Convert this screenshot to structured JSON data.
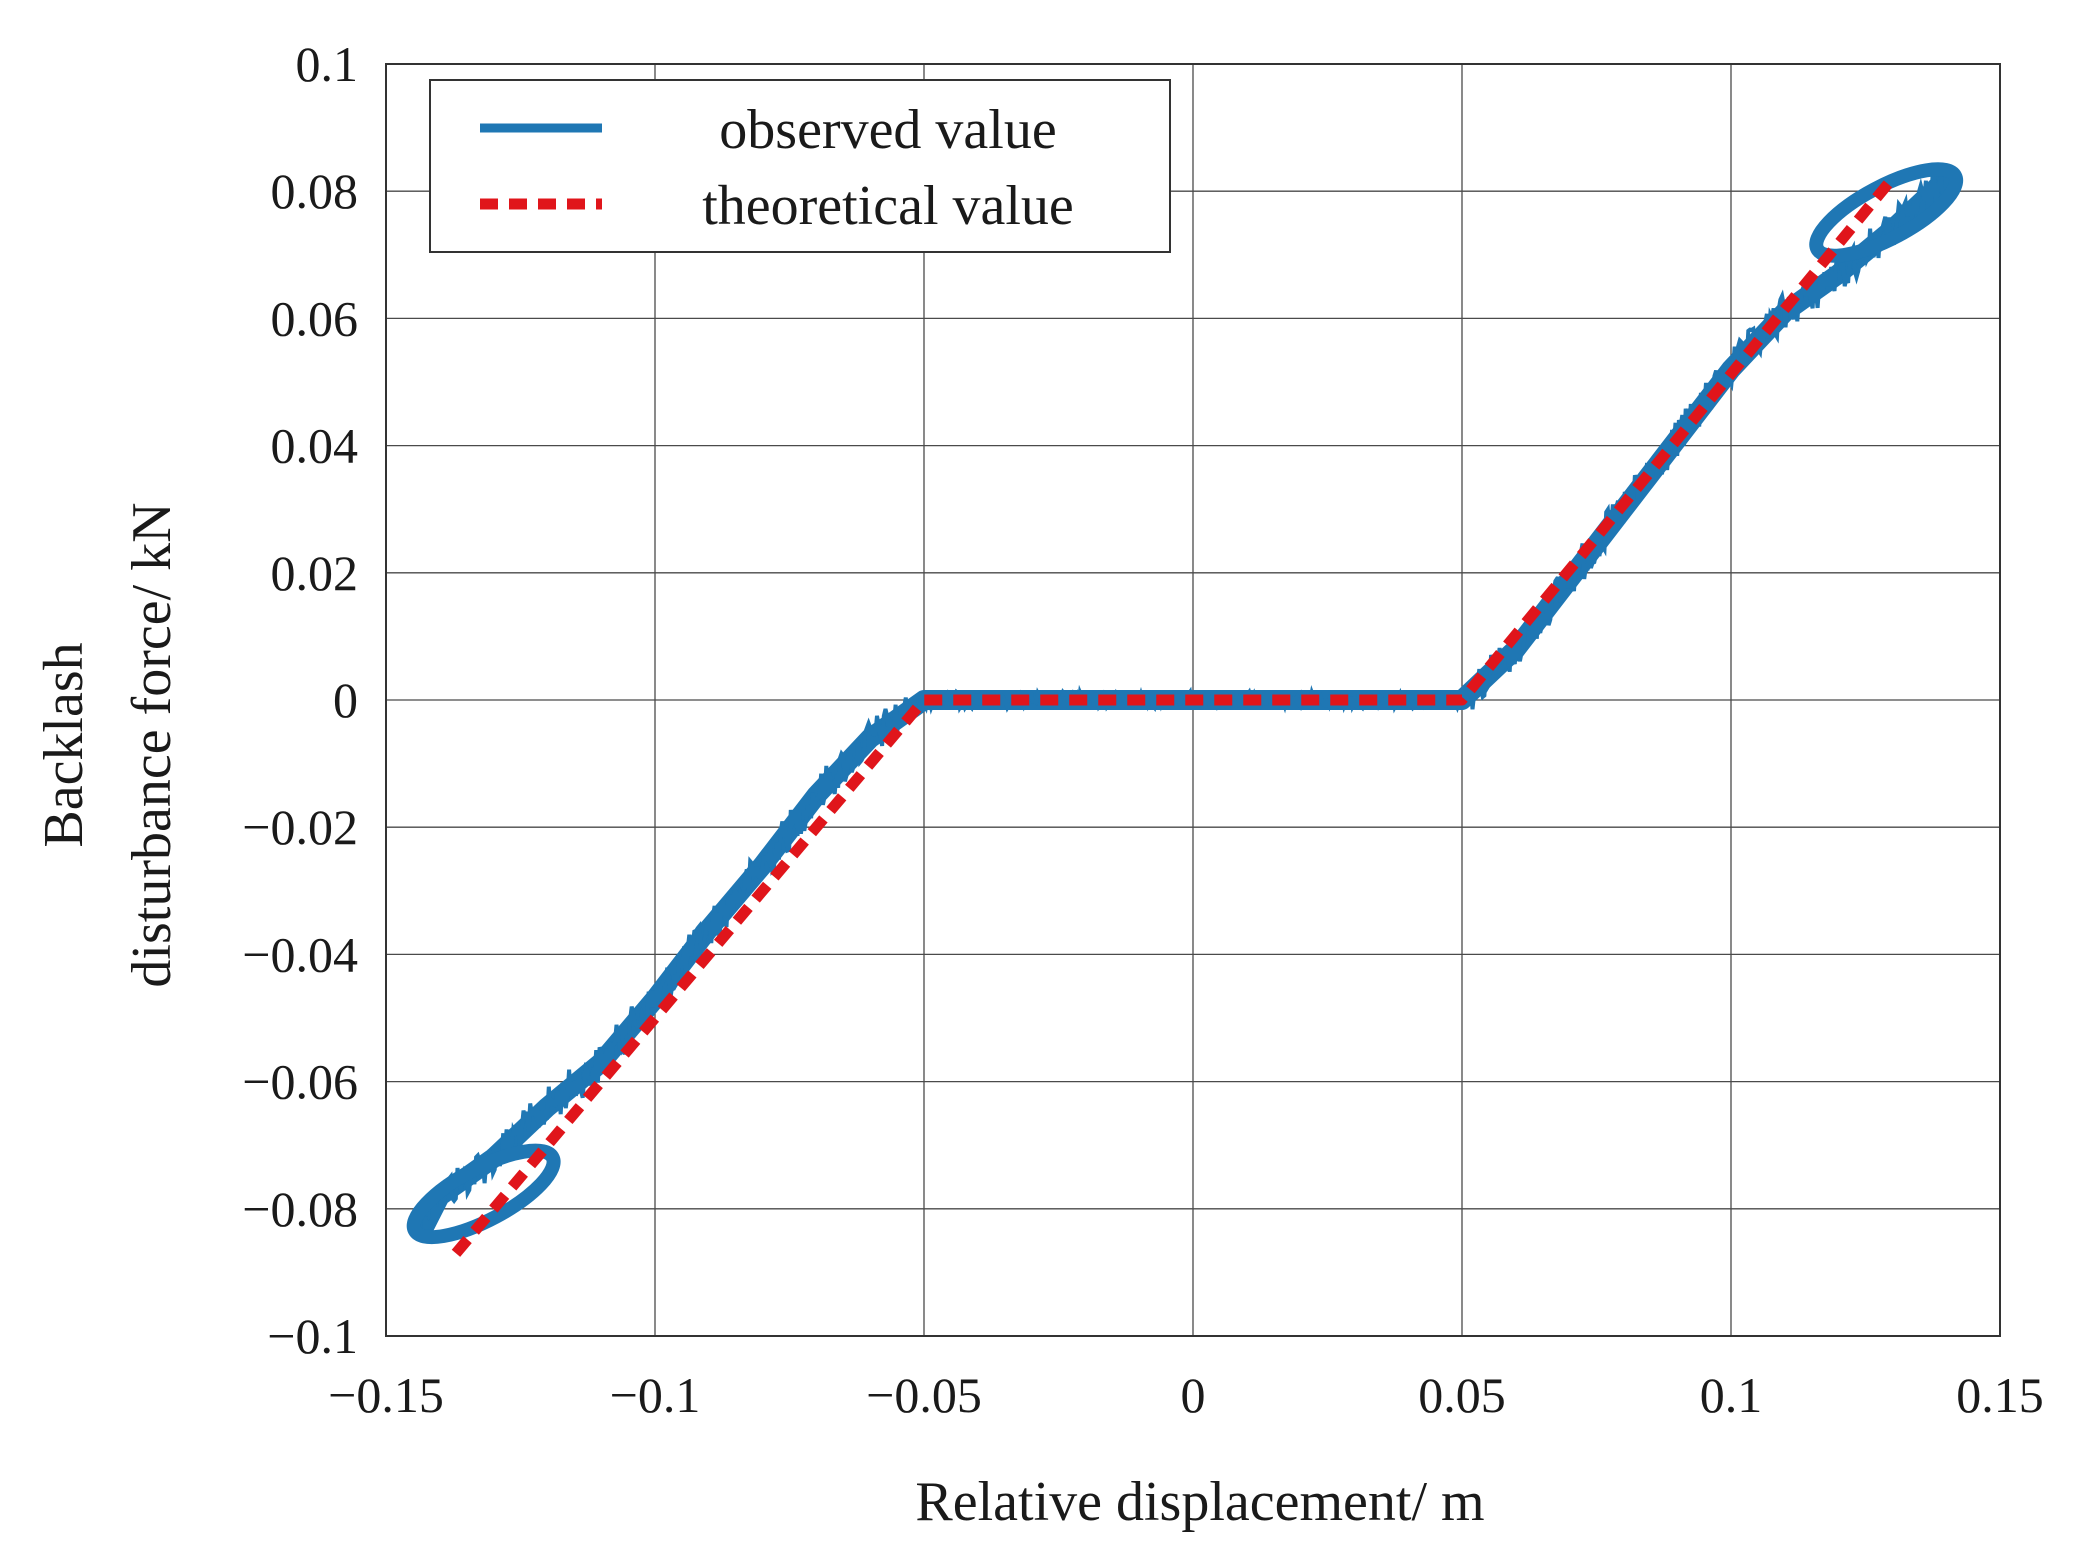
{
  "chart_data": {
    "type": "line",
    "title": "",
    "xlabel": "Relative displacement/ m",
    "ylabel_lines": [
      "Backlash",
      "disturbance force/ kN"
    ],
    "xlim": [
      -0.15,
      0.15
    ],
    "ylim": [
      -0.1,
      0.1
    ],
    "grid": true,
    "legend_position": "top-left",
    "x_ticks": [
      -0.15,
      -0.1,
      -0.05,
      0,
      0.05,
      0.1,
      0.15
    ],
    "x_tick_labels": [
      "−0.15",
      "−0.1",
      "−0.05",
      "0",
      "0.05",
      "0.1",
      "0.15"
    ],
    "y_ticks": [
      -0.1,
      -0.08,
      -0.06,
      -0.04,
      -0.02,
      0,
      0.02,
      0.04,
      0.06,
      0.08,
      0.1
    ],
    "y_tick_labels": [
      "−0.1",
      "−0.08",
      "−0.06",
      "−0.04",
      "−0.02",
      "0",
      "0.02",
      "0.04",
      "0.06",
      "0.08",
      "0.1"
    ],
    "series": [
      {
        "name": "observed value",
        "color": "#1f77b4",
        "style": "solid",
        "x": [
          -0.143,
          -0.14,
          -0.13,
          -0.12,
          -0.11,
          -0.1,
          -0.09,
          -0.08,
          -0.07,
          -0.06,
          -0.05,
          -0.04,
          0,
          0.04,
          0.05,
          0.06,
          0.07,
          0.08,
          0.09,
          0.1,
          0.11,
          0.12,
          0.13,
          0.14
        ],
        "y": [
          -0.083,
          -0.078,
          -0.072,
          -0.064,
          -0.057,
          -0.047,
          -0.036,
          -0.026,
          -0.015,
          -0.006,
          0.0,
          0.0,
          0.0,
          0.0,
          0.0,
          0.008,
          0.019,
          0.03,
          0.041,
          0.052,
          0.061,
          0.067,
          0.074,
          0.082
        ]
      },
      {
        "name": "theoretical value",
        "color": "#e0151b",
        "style": "dashed",
        "x": [
          -0.137,
          -0.05,
          0.05,
          0.13
        ],
        "y": [
          -0.087,
          0.0,
          0.0,
          0.082
        ]
      }
    ]
  }
}
